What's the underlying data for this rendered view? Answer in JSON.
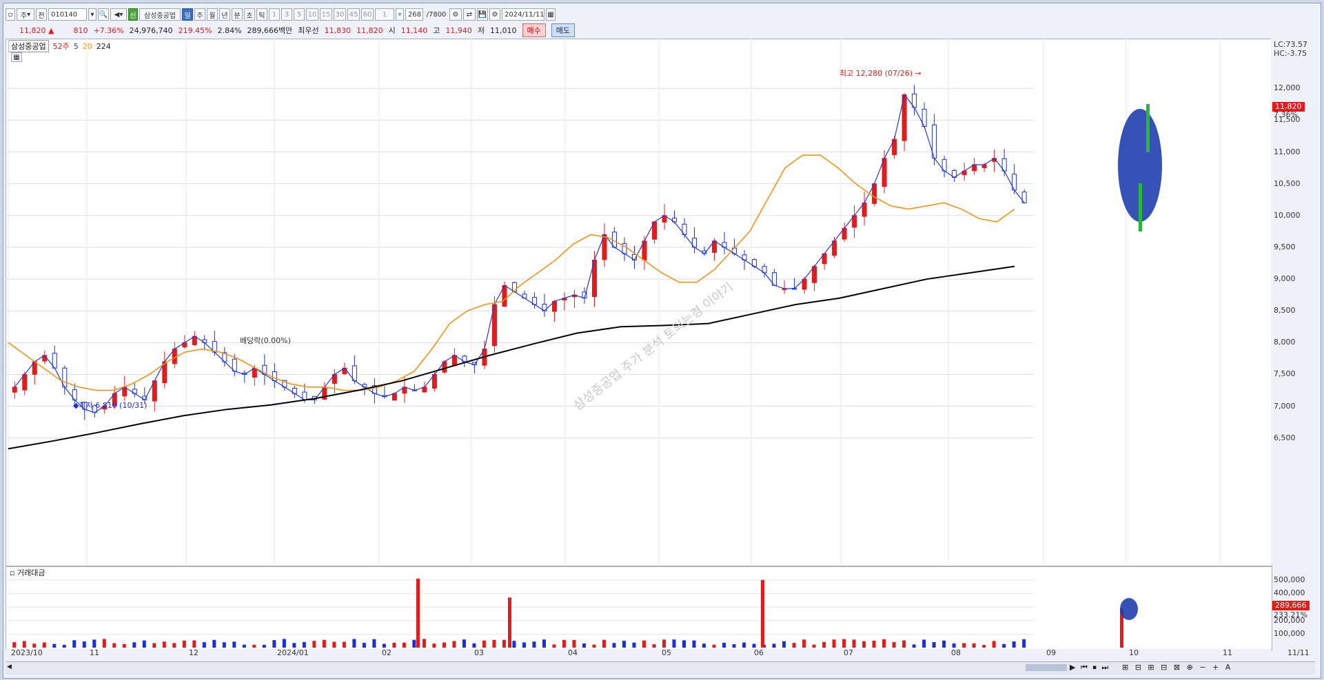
{
  "toolbar": {
    "items": [
      "주",
      "전",
      "삼성중공업",
      "일",
      "주",
      "월",
      "년",
      "분",
      "초",
      "틱",
      "1",
      "3",
      "5",
      "10",
      "15",
      "30",
      "45",
      "60",
      "1"
    ],
    "code": "010140",
    "count": "268",
    "count_total": "/7800",
    "date": "2024/11/11",
    "sin_badge": "신"
  },
  "quote": {
    "price": "11,820",
    "change": "810",
    "change_pct": "+7.36%",
    "volume": "24,976,740",
    "volume_ratio": "219.45%",
    "turnover": "2.84%",
    "amount": "289,666백만",
    "best_ask_label": "최우선",
    "best_ask": "11,830",
    "best_bid": "11,820",
    "open_label": "시",
    "open": "11,140",
    "high_label": "고",
    "high": "11,940",
    "low_label": "저",
    "low": "11,010",
    "buy": "매수",
    "sell": "매도"
  },
  "legend": {
    "name": "삼성중공업",
    "ma52": "52주",
    "ma5": "5",
    "ma20": "20",
    "ma224": "224"
  },
  "annotations": {
    "high": "최고 12,280 (07/26)",
    "low": "최저 6,810 (10/31)",
    "dividend": "배당락(0.00%)",
    "lc": "LC:73.57",
    "hc": "HC:-3.75",
    "price_tag": "11,820",
    "pct_tag": "7.36%",
    "vol_tag": "289,666",
    "vol_pct_tag": "233.21%",
    "watermark": "삼성중공업 주가 분석 토되는경 이야기"
  },
  "volume_panel": {
    "title": "거래대금"
  },
  "colors": {
    "up": "#e31b1b",
    "down": "#1a2ee0",
    "ma5": "#1f3bd6",
    "ma20": "#f39313",
    "ma224": "#000000"
  },
  "chart_data": {
    "type": "candlestick",
    "price_ticks": [
      "12,000",
      "11,500",
      "11,000",
      "10,500",
      "10,000",
      "9,500",
      "9,000",
      "8,500",
      "8,000",
      "7,500",
      "7,000",
      "6,500"
    ],
    "volume_ticks": [
      "500,000",
      "400,000",
      "300,000",
      "200,000",
      "100,000"
    ],
    "x_ticks": [
      "2023/10",
      "11",
      "12",
      "2024/01",
      "02",
      "03",
      "04",
      "05",
      "06",
      "07",
      "08",
      "09",
      "10",
      "11",
      "11/11"
    ],
    "ylim": [
      6150,
      12350
    ],
    "ma5_close_series": [
      7300,
      7500,
      7700,
      7800,
      7600,
      7300,
      7100,
      6950,
      6900,
      7000,
      7200,
      7300,
      7200,
      7100,
      7400,
      7700,
      7900,
      8000,
      8100,
      8000,
      7850,
      7700,
      7550,
      7500,
      7600,
      7500,
      7400,
      7300,
      7200,
      7100,
      7100,
      7300,
      7500,
      7600,
      7400,
      7300,
      7200,
      7150,
      7200,
      7300,
      7250,
      7300,
      7500,
      7700,
      7800,
      7700,
      7650,
      7900,
      8600,
      8900,
      8800,
      8700,
      8600,
      8500,
      8650,
      8700,
      8750,
      8700,
      9300,
      9700,
      9500,
      9400,
      9300,
      9600,
      9900,
      10000,
      9900,
      9700,
      9500,
      9400,
      9600,
      9500,
      9400,
      9300,
      9200,
      9100,
      8900,
      8850,
      8850,
      9000,
      9200,
      9400,
      9600,
      9800,
      10000,
      10200,
      10500,
      10900,
      11200,
      11900,
      11700,
      11400,
      10900,
      10700,
      10600,
      10700,
      10800,
      10800,
      10900,
      10700,
      10400,
      10200,
      10000,
      9800,
      9700,
      10100,
      10500,
      10800,
      10600,
      10200,
      10100,
      10050,
      10100,
      10150,
      10100,
      10050,
      9800,
      9600,
      9500,
      9600,
      10100,
      10900,
      11800
    ],
    "ma20_series": [
      8000,
      7800,
      7600,
      7400,
      7300,
      7250,
      7250,
      7350,
      7500,
      7700,
      7850,
      7900,
      7850,
      7750,
      7600,
      7450,
      7350,
      7300,
      7300,
      7250,
      7250,
      7300,
      7400,
      7550,
      7900,
      8300,
      8500,
      8600,
      8650,
      8900,
      9100,
      9300,
      9550,
      9700,
      9650,
      9500,
      9300,
      9100,
      8950,
      8950,
      9150,
      9450,
      9750,
      10250,
      10750,
      10950,
      10950,
      10750,
      10500,
      10300,
      10150,
      10100,
      10150,
      10200,
      10100,
      9950,
      9900,
      10100
    ],
    "ma224_series": [
      6330,
      6450,
      6580,
      6720,
      6850,
      6950,
      7020,
      7120,
      7250,
      7400,
      7600,
      7800,
      7980,
      8150,
      8250,
      8270,
      8300,
      8450,
      8600,
      8700,
      8850,
      9000,
      9100,
      9200
    ],
    "volume_highlights": [
      {
        "label": "03",
        "value": 510000
      },
      {
        "label": "04",
        "value": 370000
      },
      {
        "label": "07",
        "value": 500000
      },
      {
        "label": "11/11",
        "value": 289666
      }
    ]
  }
}
